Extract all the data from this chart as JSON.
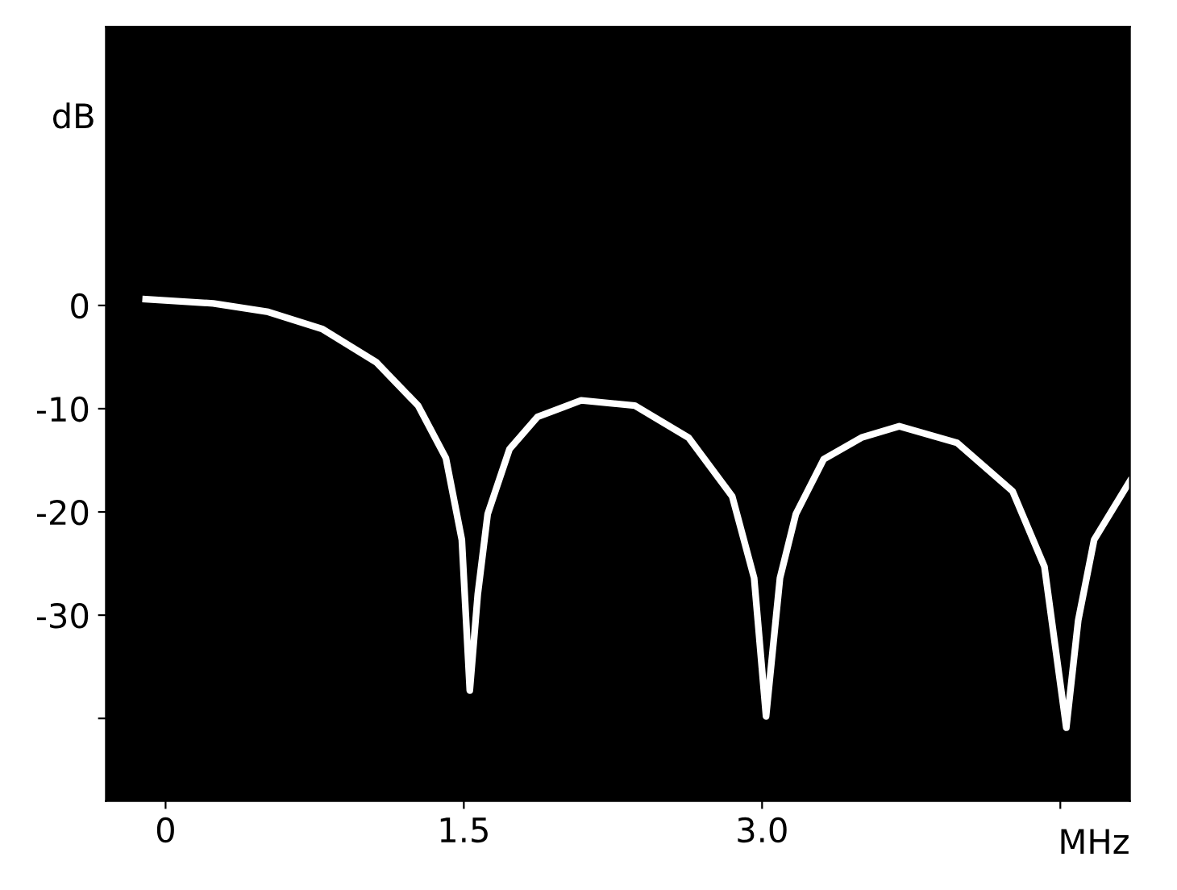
{
  "chart_data": {
    "type": "line",
    "xlabel": "MHz",
    "ylabel": "dB",
    "x": [
      -0.1,
      0.24,
      0.51,
      0.79,
      1.06,
      1.27,
      1.41,
      1.49,
      1.53,
      1.57,
      1.62,
      1.73,
      1.87,
      2.09,
      2.36,
      2.63,
      2.85,
      2.96,
      3.02,
      3.09,
      3.17,
      3.31,
      3.5,
      3.69,
      3.98,
      4.26,
      4.42,
      4.53,
      4.59,
      4.67,
      4.85
    ],
    "series": [
      {
        "color": "#ffffff",
        "values": [
          0.6,
          0.2,
          -0.6,
          -2.3,
          -5.5,
          -9.7,
          -14.8,
          -22.7,
          -37.3,
          -28,
          -20.2,
          -13.9,
          -10.8,
          -9.2,
          -9.7,
          -12.8,
          -18.5,
          -26.4,
          -39.8,
          -26.4,
          -20.2,
          -14.9,
          -12.8,
          -11.7,
          -13.3,
          -18,
          -25.3,
          -40.9,
          -30.5,
          -22.7,
          -17
        ]
      }
    ],
    "xlim": [
      -0.3,
      4.85
    ],
    "ylim": [
      -48,
      27
    ],
    "xticks": [
      0,
      1.5,
      {
        "value": 3.0,
        "label": "3.0"
      },
      {
        "value": 4.5,
        "label": null
      }
    ],
    "yticks": [
      {
        "value": -40,
        "label": null
      },
      -30,
      -20,
      -10,
      0
    ],
    "grid": false,
    "legend": false,
    "marker": "none",
    "line_style": "solid"
  }
}
